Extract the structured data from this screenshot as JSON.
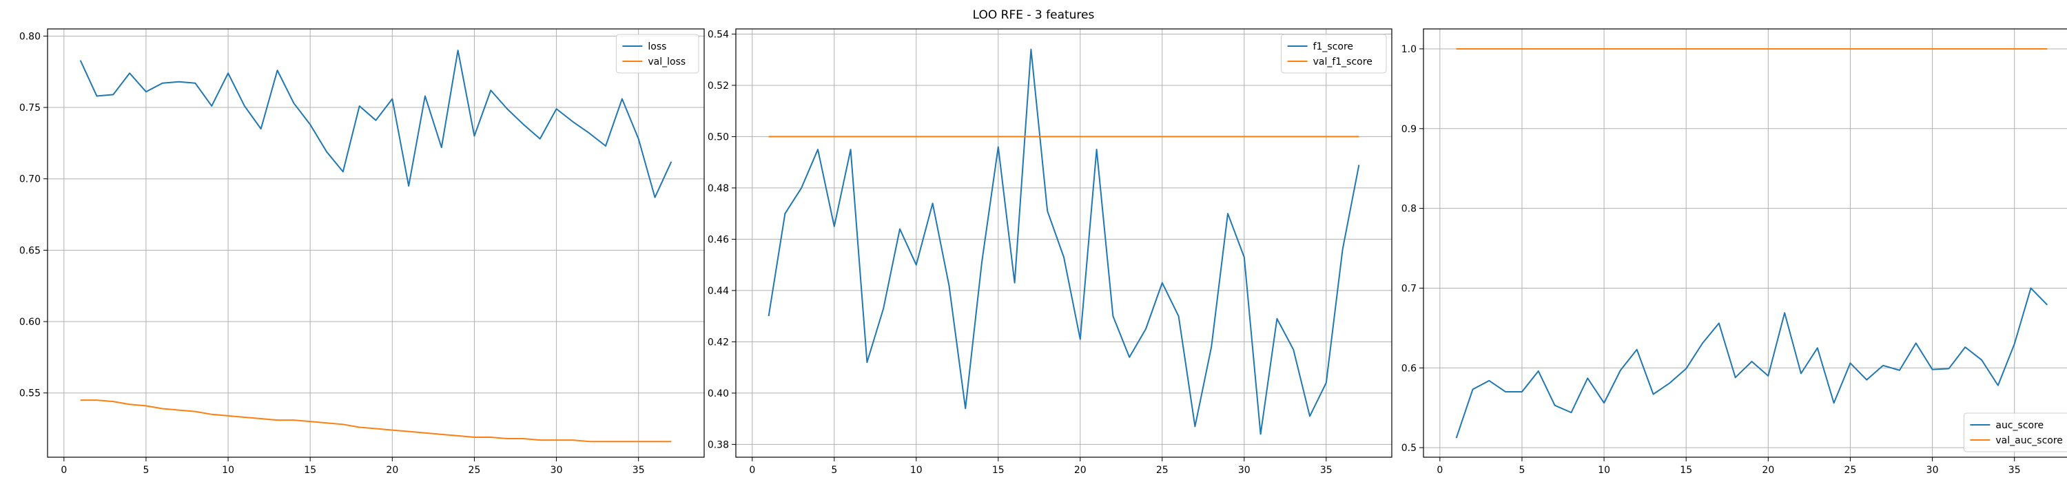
{
  "figure": {
    "suptitle": "LOO RFE - 3 features"
  },
  "chart_data": [
    {
      "type": "line",
      "title": "",
      "xlabel": "",
      "ylabel": "",
      "grid": true,
      "legend_placement": "top-right",
      "xlim": [
        -1,
        39
      ],
      "ylim": [
        0.505,
        0.805
      ],
      "xticks": [
        0,
        5,
        10,
        15,
        20,
        25,
        30,
        35
      ],
      "yticks": [
        0.55,
        0.6,
        0.65,
        0.7,
        0.75,
        0.8
      ],
      "ytick_labels": [
        "0.55",
        "0.60",
        "0.65",
        "0.70",
        "0.75",
        "0.80"
      ],
      "x": [
        1,
        2,
        3,
        4,
        5,
        6,
        7,
        8,
        9,
        10,
        11,
        12,
        13,
        14,
        15,
        16,
        17,
        18,
        19,
        20,
        21,
        22,
        23,
        24,
        25,
        26,
        27,
        28,
        29,
        30,
        31,
        32,
        33,
        34,
        35,
        36,
        37
      ],
      "series": [
        {
          "name": "loss",
          "color": "#1f77b4",
          "values": [
            0.783,
            0.758,
            0.759,
            0.774,
            0.761,
            0.767,
            0.768,
            0.767,
            0.751,
            0.774,
            0.751,
            0.735,
            0.776,
            0.753,
            0.738,
            0.719,
            0.705,
            0.751,
            0.741,
            0.756,
            0.695,
            0.758,
            0.722,
            0.79,
            0.73,
            0.762,
            0.749,
            0.738,
            0.728,
            0.749,
            0.74,
            0.732,
            0.723,
            0.756,
            0.728,
            0.687,
            0.712
          ]
        },
        {
          "name": "val_loss",
          "color": "#ff7f0e",
          "values": [
            0.545,
            0.545,
            0.544,
            0.542,
            0.541,
            0.539,
            0.538,
            0.537,
            0.535,
            0.534,
            0.533,
            0.532,
            0.531,
            0.531,
            0.53,
            0.529,
            0.528,
            0.526,
            0.525,
            0.524,
            0.523,
            0.522,
            0.521,
            0.52,
            0.519,
            0.519,
            0.518,
            0.518,
            0.517,
            0.517,
            0.517,
            0.516,
            0.516,
            0.516,
            0.516,
            0.516,
            0.516
          ]
        }
      ]
    },
    {
      "type": "line",
      "title": "",
      "xlabel": "",
      "ylabel": "",
      "grid": true,
      "legend_placement": "top-right",
      "xlim": [
        -1,
        39
      ],
      "ylim": [
        0.375,
        0.542
      ],
      "xticks": [
        0,
        5,
        10,
        15,
        20,
        25,
        30,
        35
      ],
      "yticks": [
        0.38,
        0.4,
        0.42,
        0.44,
        0.46,
        0.48,
        0.5,
        0.52,
        0.54
      ],
      "ytick_labels": [
        "0.38",
        "0.40",
        "0.42",
        "0.44",
        "0.46",
        "0.48",
        "0.50",
        "0.52",
        "0.54"
      ],
      "x": [
        1,
        2,
        3,
        4,
        5,
        6,
        7,
        8,
        9,
        10,
        11,
        12,
        13,
        14,
        15,
        16,
        17,
        18,
        19,
        20,
        21,
        22,
        23,
        24,
        25,
        26,
        27,
        28,
        29,
        30,
        31,
        32,
        33,
        34,
        35,
        36,
        37
      ],
      "series": [
        {
          "name": "f1_score",
          "color": "#1f77b4",
          "values": [
            0.43,
            0.47,
            0.48,
            0.495,
            0.465,
            0.495,
            0.412,
            0.433,
            0.464,
            0.45,
            0.474,
            0.442,
            0.394,
            0.451,
            0.496,
            0.443,
            0.534,
            0.471,
            0.453,
            0.421,
            0.495,
            0.43,
            0.414,
            0.425,
            0.443,
            0.43,
            0.387,
            0.418,
            0.47,
            0.453,
            0.384,
            0.429,
            0.417,
            0.391,
            0.404,
            0.456,
            0.489
          ]
        },
        {
          "name": "val_f1_score",
          "color": "#ff7f0e",
          "values": [
            0.5,
            0.5,
            0.5,
            0.5,
            0.5,
            0.5,
            0.5,
            0.5,
            0.5,
            0.5,
            0.5,
            0.5,
            0.5,
            0.5,
            0.5,
            0.5,
            0.5,
            0.5,
            0.5,
            0.5,
            0.5,
            0.5,
            0.5,
            0.5,
            0.5,
            0.5,
            0.5,
            0.5,
            0.5,
            0.5,
            0.5,
            0.5,
            0.5,
            0.5,
            0.5,
            0.5,
            0.5
          ]
        }
      ]
    },
    {
      "type": "line",
      "title": "",
      "xlabel": "",
      "ylabel": "",
      "grid": true,
      "legend_placement": "bottom-right",
      "xlim": [
        -1,
        39
      ],
      "ylim": [
        0.488,
        1.025
      ],
      "xticks": [
        0,
        5,
        10,
        15,
        20,
        25,
        30,
        35
      ],
      "yticks": [
        0.5,
        0.6,
        0.7,
        0.8,
        0.9,
        1.0
      ],
      "ytick_labels": [
        "0.5",
        "0.6",
        "0.7",
        "0.8",
        "0.9",
        "1.0"
      ],
      "x": [
        1,
        2,
        3,
        4,
        5,
        6,
        7,
        8,
        9,
        10,
        11,
        12,
        13,
        14,
        15,
        16,
        17,
        18,
        19,
        20,
        21,
        22,
        23,
        24,
        25,
        26,
        27,
        28,
        29,
        30,
        31,
        32,
        33,
        34,
        35,
        36,
        37
      ],
      "series": [
        {
          "name": "auc_score",
          "color": "#1f77b4",
          "values": [
            0.512,
            0.573,
            0.584,
            0.57,
            0.57,
            0.596,
            0.553,
            0.544,
            0.587,
            0.556,
            0.597,
            0.623,
            0.567,
            0.581,
            0.599,
            0.631,
            0.656,
            0.588,
            0.608,
            0.59,
            0.669,
            0.593,
            0.625,
            0.556,
            0.606,
            0.585,
            0.603,
            0.597,
            0.631,
            0.598,
            0.599,
            0.626,
            0.61,
            0.578,
            0.63,
            0.7,
            0.679
          ]
        },
        {
          "name": "val_auc_score",
          "color": "#ff7f0e",
          "values": [
            1.0,
            1.0,
            1.0,
            1.0,
            1.0,
            1.0,
            1.0,
            1.0,
            1.0,
            1.0,
            1.0,
            1.0,
            1.0,
            1.0,
            1.0,
            1.0,
            1.0,
            1.0,
            1.0,
            1.0,
            1.0,
            1.0,
            1.0,
            1.0,
            1.0,
            1.0,
            1.0,
            1.0,
            1.0,
            1.0,
            1.0,
            1.0,
            1.0,
            1.0,
            1.0,
            1.0,
            1.0
          ]
        }
      ]
    }
  ]
}
